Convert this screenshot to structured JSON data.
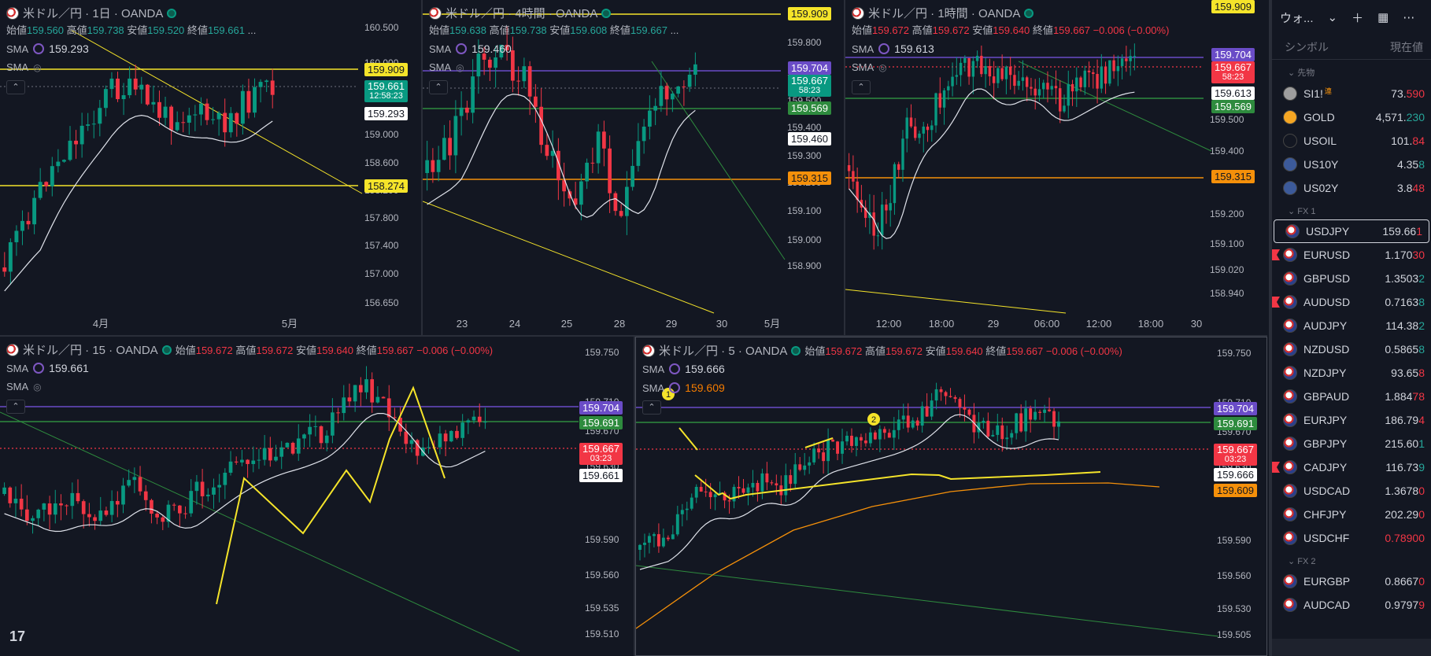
{
  "charts": {
    "daily": {
      "title": "米ドル／円 · 1日 · OANDA",
      "ohlc": {
        "o_label": "始値",
        "o": "159.560",
        "h_label": "高値",
        "h": "159.738",
        "l_label": "安値",
        "l": "159.520",
        "c_label": "終値",
        "c": "159.661",
        "more": "..."
      },
      "sma1": {
        "label": "SMA",
        "value": "159.293"
      },
      "sma2": {
        "label": "SMA"
      },
      "yticks": [
        "160.500",
        "160.000",
        "159.500",
        "159.000",
        "158.600",
        "158.200",
        "157.800",
        "157.400",
        "157.000",
        "156.650"
      ],
      "xticks": [
        "4月",
        "5月"
      ],
      "price_labels": {
        "yellow1": "159.909",
        "teal": "159.661",
        "teal_sub": "12:58:23",
        "white": "159.293",
        "yellow2": "158.274"
      }
    },
    "h4": {
      "title": "米ドル／円 · 4時間 · OANDA",
      "ohlc": {
        "o_label": "始値",
        "o": "159.638",
        "h_label": "高値",
        "h": "159.738",
        "l_label": "安値",
        "l": "159.608",
        "c_label": "終値",
        "c": "159.667",
        "more": "..."
      },
      "sma1": {
        "label": "SMA",
        "value": "159.460"
      },
      "sma2": {
        "label": "SMA"
      },
      "yticks": [
        "159.800",
        "159.600",
        "159.500",
        "159.400",
        "159.300",
        "159.200",
        "159.100",
        "159.000",
        "158.900"
      ],
      "xticks": [
        "23",
        "24",
        "25",
        "28",
        "29",
        "30",
        "5月"
      ],
      "price_labels": {
        "yellow": "159.909",
        "purple": "159.704",
        "teal": "159.667",
        "teal_sub": "58:23",
        "green": "159.569",
        "white": "159.460",
        "orange": "159.315"
      }
    },
    "h1": {
      "title": "米ドル／円 · 1時間 · OANDA",
      "ohlc": {
        "o_label": "始値",
        "o": "159.672",
        "h_label": "高値",
        "h": "159.672",
        "l_label": "安値",
        "l": "159.640",
        "c_label": "終値",
        "c": "159.667",
        "chg": "−0.006 (−0.00%)"
      },
      "sma1": {
        "label": "SMA",
        "value": "159.613"
      },
      "sma2": {
        "label": "SMA"
      },
      "yticks": [
        "159.500",
        "159.400",
        "159.200",
        "159.100",
        "159.020",
        "158.940"
      ],
      "xticks": [
        "12:00",
        "18:00",
        "29",
        "06:00",
        "12:00",
        "18:00",
        "30"
      ],
      "price_labels": {
        "yellow": "159.909",
        "purple": "159.704",
        "red": "159.667",
        "red_sub": "58:23",
        "white": "159.613",
        "green": "159.569",
        "orange": "159.315"
      }
    },
    "m15": {
      "title": "米ドル／円 · 15 · OANDA",
      "ohlc": {
        "o_label": "始値",
        "o": "159.672",
        "h_label": "高値",
        "h": "159.672",
        "l_label": "安値",
        "l": "159.640",
        "c_label": "終値",
        "c": "159.667",
        "chg": "−0.006 (−0.00%)"
      },
      "sma1": {
        "label": "SMA",
        "value": "159.661"
      },
      "sma2": {
        "label": "SMA"
      },
      "yticks": [
        "159.750",
        "159.710",
        "159.670",
        "159.630",
        "159.590",
        "159.560",
        "159.535",
        "159.510"
      ],
      "price_labels": {
        "purple": "159.704",
        "green": "159.691",
        "red": "159.667",
        "red_sub": "03:23",
        "white": "159.661"
      }
    },
    "m5": {
      "title": "米ドル／円 · 5 · OANDA",
      "ohlc": {
        "o_label": "始値",
        "o": "159.672",
        "h_label": "高値",
        "h": "159.672",
        "l_label": "安値",
        "l": "159.640",
        "c_label": "終値",
        "c": "159.667",
        "chg": "−0.006 (−0.00%)"
      },
      "sma1": {
        "label": "SMA",
        "value": "159.666"
      },
      "sma2": {
        "label": "SMA",
        "value": "159.609"
      },
      "yticks": [
        "159.750",
        "159.710",
        "159.670",
        "159.630",
        "159.590",
        "159.560",
        "159.530",
        "159.505"
      ],
      "price_labels": {
        "purple": "159.704",
        "green": "159.691",
        "red": "159.667",
        "red_sub": "03:23",
        "white": "159.666",
        "orange": "159.609"
      },
      "markers": [
        "1",
        "2"
      ]
    }
  },
  "watchlist": {
    "title": "ウォ...",
    "col_symbol": "シンボル",
    "col_price": "現在値",
    "sections": [
      {
        "name": "先物",
        "items": [
          {
            "sym": "SI1!",
            "px_main": "73.",
            "px_tail": "590",
            "color": "red",
            "icon": "silver",
            "tag": "連"
          },
          {
            "sym": "GOLD",
            "px_main": "4,571.",
            "px_tail": "230",
            "color": "grn",
            "icon": "gold"
          },
          {
            "sym": "USOIL",
            "px_main": "101.",
            "px_tail": "84",
            "color": "red",
            "icon": "oil-drop"
          },
          {
            "sym": "US10Y",
            "px_main": "4.35",
            "px_tail": "8",
            "color": "grn",
            "icon": "us-flag"
          },
          {
            "sym": "US02Y",
            "px_main": "3.8",
            "px_tail": "48",
            "color": "red",
            "icon": "us-flag"
          }
        ]
      },
      {
        "name": "FX 1",
        "items": [
          {
            "sym": "USDJPY",
            "px_main": "159.66",
            "px_tail": "1",
            "color": "red",
            "icon": "usdjpy",
            "selected": true
          },
          {
            "sym": "EURUSD",
            "px_main": "1.170",
            "px_tail": "30",
            "color": "red",
            "icon": "eurusd",
            "flag": true
          },
          {
            "sym": "GBPUSD",
            "px_main": "1.3503",
            "px_tail": "2",
            "color": "grn",
            "icon": "gbpusd"
          },
          {
            "sym": "AUDUSD",
            "px_main": "0.7163",
            "px_tail": "8",
            "color": "grn",
            "icon": "audusd",
            "flag": true
          },
          {
            "sym": "AUDJPY",
            "px_main": "114.38",
            "px_tail": "2",
            "color": "grn",
            "icon": "audjpy"
          },
          {
            "sym": "NZDUSD",
            "px_main": "0.5865",
            "px_tail": "8",
            "color": "grn",
            "icon": "nzdusd"
          },
          {
            "sym": "NZDJPY",
            "px_main": "93.65",
            "px_tail": "8",
            "color": "red",
            "icon": "nzdjpy"
          },
          {
            "sym": "GBPAUD",
            "px_main": "1.884",
            "px_tail": "78",
            "color": "red",
            "icon": "gbpaud"
          },
          {
            "sym": "EURJPY",
            "px_main": "186.79",
            "px_tail": "4",
            "color": "red",
            "icon": "eurjpy"
          },
          {
            "sym": "GBPJPY",
            "px_main": "215.60",
            "px_tail": "1",
            "color": "grn",
            "icon": "gbpjpy"
          },
          {
            "sym": "CADJPY",
            "px_main": "116.73",
            "px_tail": "9",
            "color": "grn",
            "icon": "cadjpy",
            "flag": true
          },
          {
            "sym": "USDCAD",
            "px_main": "1.3678",
            "px_tail": "0",
            "color": "red",
            "icon": "usdcad"
          },
          {
            "sym": "CHFJPY",
            "px_main": "202.29",
            "px_tail": "0",
            "color": "red",
            "icon": "chfjpy"
          },
          {
            "sym": "USDCHF",
            "px_main": "0.7890",
            "px_tail": "0",
            "color": "red",
            "icon": "usdchf",
            "redprice": true
          }
        ]
      },
      {
        "name": "FX 2",
        "items": [
          {
            "sym": "EURGBP",
            "px_main": "0.8667",
            "px_tail": "0",
            "color": "red",
            "icon": "eurgbp"
          },
          {
            "sym": "AUDCAD",
            "px_main": "0.9797",
            "px_tail": "9",
            "color": "red",
            "icon": "audcad"
          }
        ]
      }
    ]
  },
  "colors": {
    "up": "#089981",
    "down": "#f23645",
    "bg": "#131722",
    "yellow": "#f5e42a",
    "purple": "#6a4cc7",
    "green": "#2e8b3e",
    "orange": "#f5900a"
  }
}
